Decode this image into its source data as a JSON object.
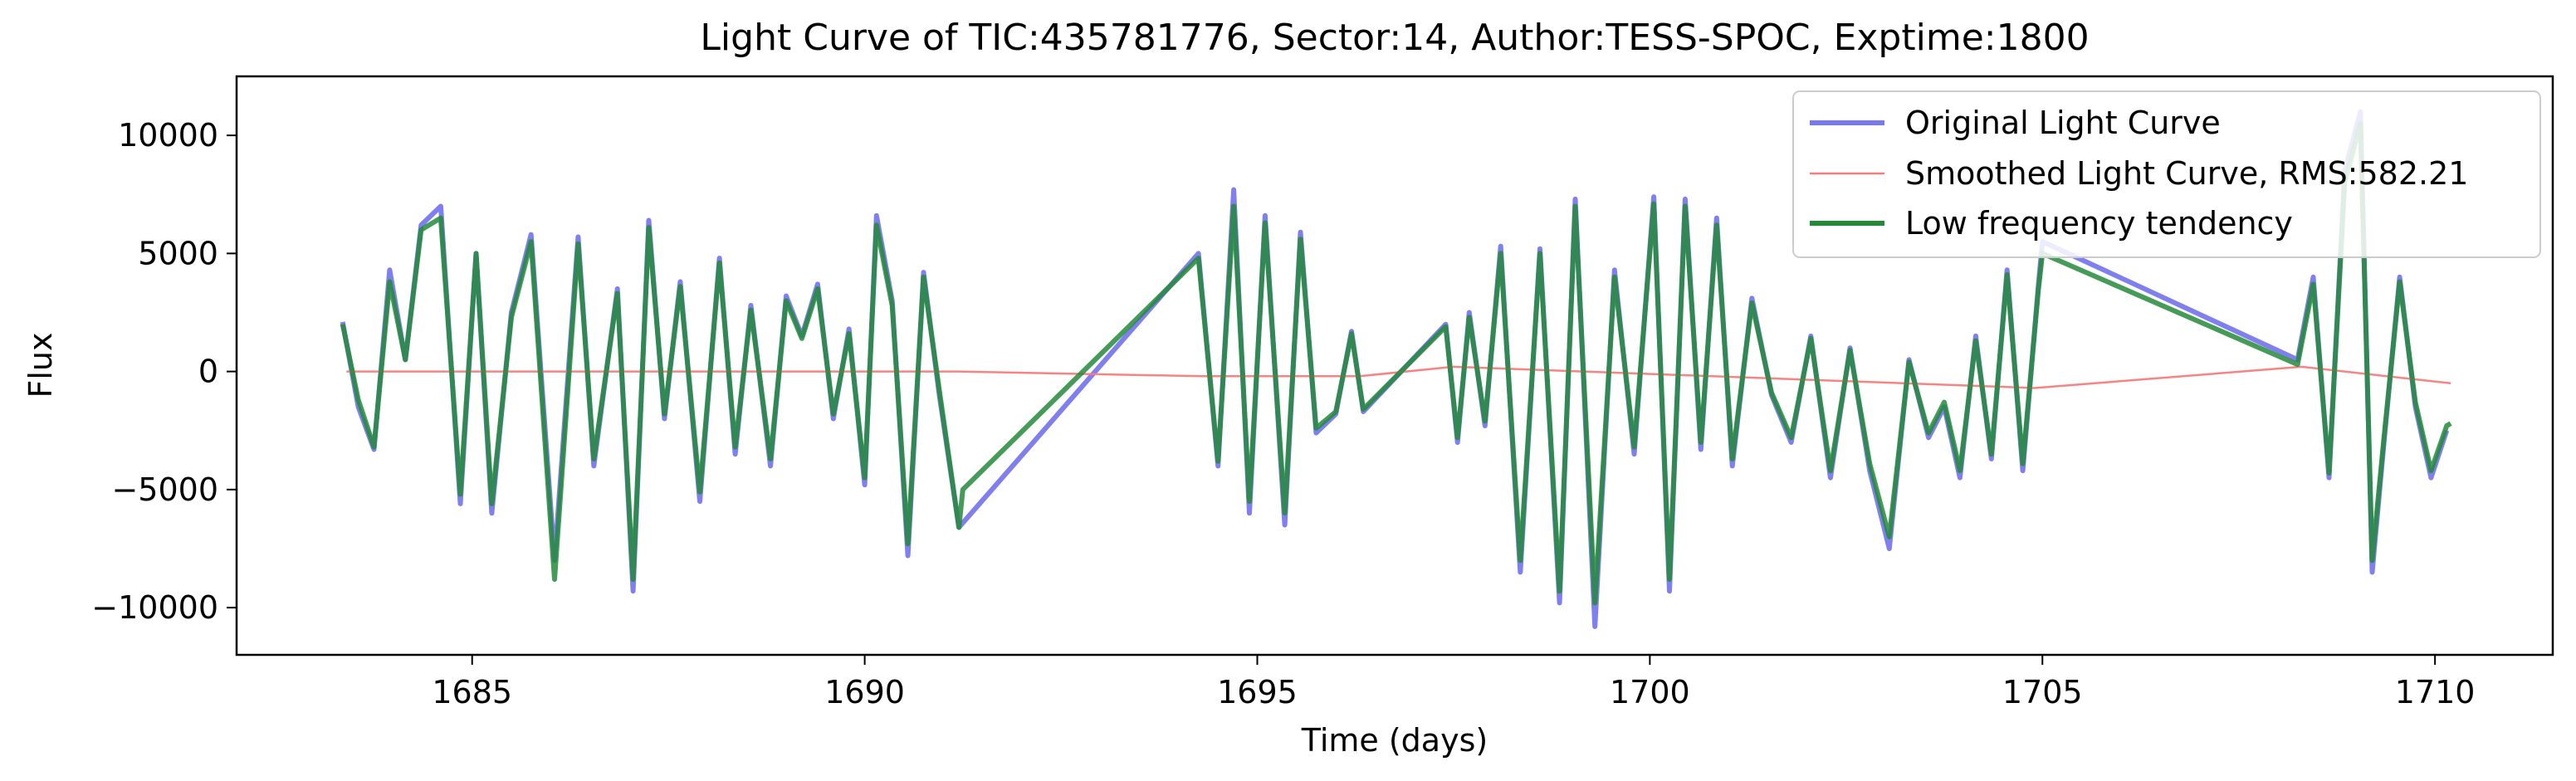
{
  "chart_data": {
    "type": "line",
    "title": "Light Curve of TIC:435781776, Sector:14, Author:TESS-SPOC, Exptime:1800",
    "xlabel": "Time (days)",
    "ylabel": "Flux",
    "xlim": [
      1682.0,
      1711.5
    ],
    "ylim": [
      -12000,
      12500
    ],
    "xticks": [
      1685,
      1690,
      1695,
      1700,
      1705,
      1710
    ],
    "xtick_labels": [
      "1685",
      "1690",
      "1695",
      "1700",
      "1705",
      "1710"
    ],
    "yticks": [
      -10000,
      -5000,
      0,
      5000,
      10000
    ],
    "ytick_labels": [
      "−10000",
      "−5000",
      "0",
      "5000",
      "10000"
    ],
    "grid": false,
    "legend_position": "top-right",
    "series": [
      {
        "name": "Original Light Curve",
        "color": "#7878ef",
        "x": [
          1683.35,
          1683.55,
          1683.75,
          1683.95,
          1684.15,
          1684.35,
          1684.6,
          1684.85,
          1685.05,
          1685.25,
          1685.5,
          1685.75,
          1686.05,
          1686.35,
          1686.55,
          1686.85,
          1687.05,
          1687.25,
          1687.45,
          1687.65,
          1687.9,
          1688.15,
          1688.35,
          1688.55,
          1688.8,
          1689.0,
          1689.2,
          1689.4,
          1689.6,
          1689.8,
          1690.0,
          1690.15,
          1690.35,
          1690.55,
          1690.75,
          1690.95,
          1691.2,
          1694.25,
          1694.5,
          1694.7,
          1694.9,
          1695.1,
          1695.35,
          1695.55,
          1695.75,
          1696.0,
          1696.2,
          1696.35,
          1697.4,
          1697.55,
          1697.7,
          1697.9,
          1698.1,
          1698.35,
          1698.6,
          1698.85,
          1699.05,
          1699.3,
          1699.55,
          1699.8,
          1700.05,
          1700.25,
          1700.45,
          1700.65,
          1700.85,
          1701.05,
          1701.3,
          1701.55,
          1701.8,
          1702.05,
          1702.3,
          1702.55,
          1702.8,
          1703.05,
          1703.3,
          1703.55,
          1703.75,
          1703.95,
          1704.15,
          1704.35,
          1704.55,
          1704.75,
          1704.95,
          1705.0,
          1708.25,
          1708.45,
          1708.65,
          1708.85,
          1709.05,
          1709.2,
          1709.35,
          1709.55,
          1709.75,
          1709.95,
          1710.15
        ],
        "y": [
          2100,
          -1500,
          -3300,
          4300,
          500,
          6200,
          7000,
          -5600,
          5000,
          -6000,
          2500,
          5800,
          -8000,
          5700,
          -4000,
          3500,
          -9300,
          6400,
          -2000,
          3800,
          -5500,
          4800,
          -3500,
          2800,
          -4000,
          3200,
          1500,
          3700,
          -2000,
          1800,
          -4800,
          6600,
          3000,
          -7800,
          4200,
          -1000,
          -6600,
          5000,
          -4000,
          7700,
          -6000,
          6600,
          -6500,
          5900,
          -2600,
          -1800,
          1700,
          -1700,
          2000,
          -3000,
          2500,
          -2300,
          5300,
          -8500,
          5200,
          -9800,
          7300,
          -10800,
          4300,
          -3500,
          7400,
          -9300,
          7300,
          -3300,
          6500,
          -4000,
          3100,
          -1000,
          -3000,
          1500,
          -4500,
          1000,
          -4200,
          -7500,
          500,
          -2800,
          -1500,
          -4500,
          1500,
          -3700,
          4300,
          -4200,
          3700,
          5500,
          500,
          4000,
          -4500,
          8500,
          11000,
          -8500,
          -3000,
          4000,
          -1500,
          -4500,
          -2500
        ]
      },
      {
        "name": "Smoothed Light Curve, RMS:582.21",
        "color": "#f67d7d",
        "x": [
          1683.4,
          1691.2,
          1694.3,
          1696.3,
          1697.5,
          1704.9,
          1708.3,
          1710.2
        ],
        "y": [
          0,
          0,
          -200,
          -200,
          200,
          -700,
          200,
          -500
        ]
      },
      {
        "name": "Low frequency tendency",
        "color": "#248a3a",
        "x": [
          1683.35,
          1683.55,
          1683.75,
          1683.95,
          1684.15,
          1684.35,
          1684.6,
          1684.85,
          1685.05,
          1685.25,
          1685.5,
          1685.75,
          1686.05,
          1686.35,
          1686.55,
          1686.85,
          1687.05,
          1687.25,
          1687.45,
          1687.65,
          1687.9,
          1688.15,
          1688.35,
          1688.55,
          1688.8,
          1689.0,
          1689.2,
          1689.4,
          1689.6,
          1689.8,
          1690.0,
          1690.15,
          1690.35,
          1690.55,
          1690.75,
          1690.95,
          1691.2,
          1691.25,
          1694.25,
          1694.5,
          1694.7,
          1694.9,
          1695.1,
          1695.35,
          1695.55,
          1695.75,
          1696.0,
          1696.2,
          1696.35,
          1697.4,
          1697.55,
          1697.7,
          1697.9,
          1698.1,
          1698.35,
          1698.6,
          1698.85,
          1699.05,
          1699.3,
          1699.55,
          1699.8,
          1700.05,
          1700.25,
          1700.45,
          1700.65,
          1700.85,
          1701.05,
          1701.3,
          1701.55,
          1701.8,
          1702.05,
          1702.3,
          1702.55,
          1702.8,
          1703.05,
          1703.3,
          1703.55,
          1703.75,
          1703.95,
          1704.15,
          1704.35,
          1704.55,
          1704.75,
          1704.95,
          1705.0,
          1708.25,
          1708.45,
          1708.65,
          1708.85,
          1709.05,
          1709.2,
          1709.35,
          1709.55,
          1709.75,
          1709.95,
          1710.15,
          1710.2
        ],
        "y": [
          2000,
          -1200,
          -3200,
          3800,
          500,
          6000,
          6500,
          -5200,
          5000,
          -5600,
          2300,
          5500,
          -8800,
          5400,
          -3700,
          3300,
          -8800,
          6100,
          -1800,
          3600,
          -5100,
          4600,
          -3200,
          2600,
          -3700,
          3000,
          1400,
          3500,
          -1800,
          1600,
          -4500,
          6200,
          2800,
          -7300,
          4000,
          -800,
          -6600,
          -5000,
          4800,
          -3800,
          7000,
          -5500,
          6300,
          -6000,
          5600,
          -2400,
          -1700,
          1600,
          -1600,
          1900,
          -2800,
          2300,
          -2100,
          5000,
          -8000,
          5000,
          -9300,
          7000,
          -9800,
          4000,
          -3200,
          7100,
          -8800,
          7000,
          -3000,
          6200,
          -3700,
          2900,
          -900,
          -2800,
          1400,
          -4200,
          900,
          -3900,
          -7000,
          400,
          -2600,
          -1300,
          -4200,
          1300,
          -3500,
          4100,
          -3900,
          3500,
          5000,
          300,
          3700,
          -4300,
          8000,
          10500,
          -8000,
          -2800,
          3800,
          -1300,
          -4200,
          -2300,
          -2200
        ]
      }
    ]
  }
}
